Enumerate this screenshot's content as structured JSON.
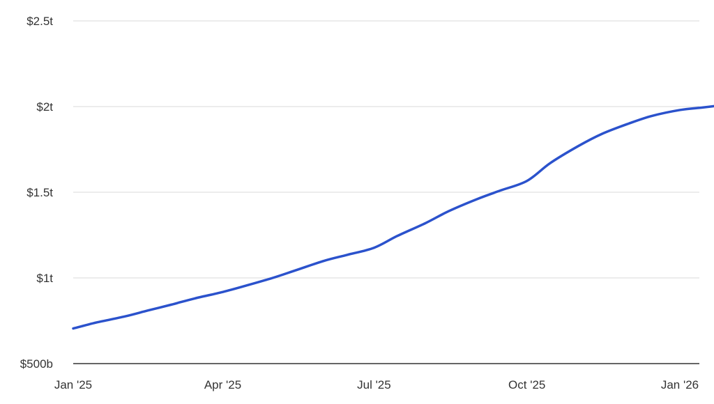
{
  "chart_data": {
    "type": "line",
    "title": "",
    "xlabel": "",
    "ylabel": "",
    "ylim": [
      500,
      2500
    ],
    "xlim": [
      "2025-01-01",
      "2026-01-28"
    ],
    "grid": true,
    "line_color": "#2b52cc",
    "y_ticks": [
      {
        "value": 500,
        "label": "$500b"
      },
      {
        "value": 1000,
        "label": "$1t"
      },
      {
        "value": 1500,
        "label": "$1.5t"
      },
      {
        "value": 2000,
        "label": "$2t"
      },
      {
        "value": 2500,
        "label": "$2.5t"
      }
    ],
    "x_ticks": [
      {
        "date": "2025-01-01",
        "label": "Jan '25"
      },
      {
        "date": "2025-04-01",
        "label": "Apr '25"
      },
      {
        "date": "2025-07-01",
        "label": "Jul '25"
      },
      {
        "date": "2025-10-01",
        "label": "Oct '25"
      },
      {
        "date": "2026-01-01",
        "label": "Jan '26"
      }
    ],
    "series": [
      {
        "unit": "billions USD",
        "points": [
          [
            "2025-01-01",
            705
          ],
          [
            "2025-01-15",
            740
          ],
          [
            "2025-02-01",
            775
          ],
          [
            "2025-02-15",
            810
          ],
          [
            "2025-03-01",
            844
          ],
          [
            "2025-03-15",
            880
          ],
          [
            "2025-04-01",
            918
          ],
          [
            "2025-04-15",
            955
          ],
          [
            "2025-05-01",
            1000
          ],
          [
            "2025-05-15",
            1045
          ],
          [
            "2025-06-01",
            1100
          ],
          [
            "2025-06-15",
            1135
          ],
          [
            "2025-07-01",
            1176
          ],
          [
            "2025-07-15",
            1245
          ],
          [
            "2025-08-01",
            1320
          ],
          [
            "2025-08-15",
            1390
          ],
          [
            "2025-09-01",
            1460
          ],
          [
            "2025-09-15",
            1510
          ],
          [
            "2025-10-01",
            1566
          ],
          [
            "2025-10-15",
            1670
          ],
          [
            "2025-11-01",
            1770
          ],
          [
            "2025-11-15",
            1840
          ],
          [
            "2025-12-01",
            1900
          ],
          [
            "2025-12-15",
            1945
          ],
          [
            "2026-01-01",
            1980
          ],
          [
            "2026-01-15",
            1995
          ],
          [
            "2026-01-28",
            2010
          ]
        ]
      }
    ]
  }
}
